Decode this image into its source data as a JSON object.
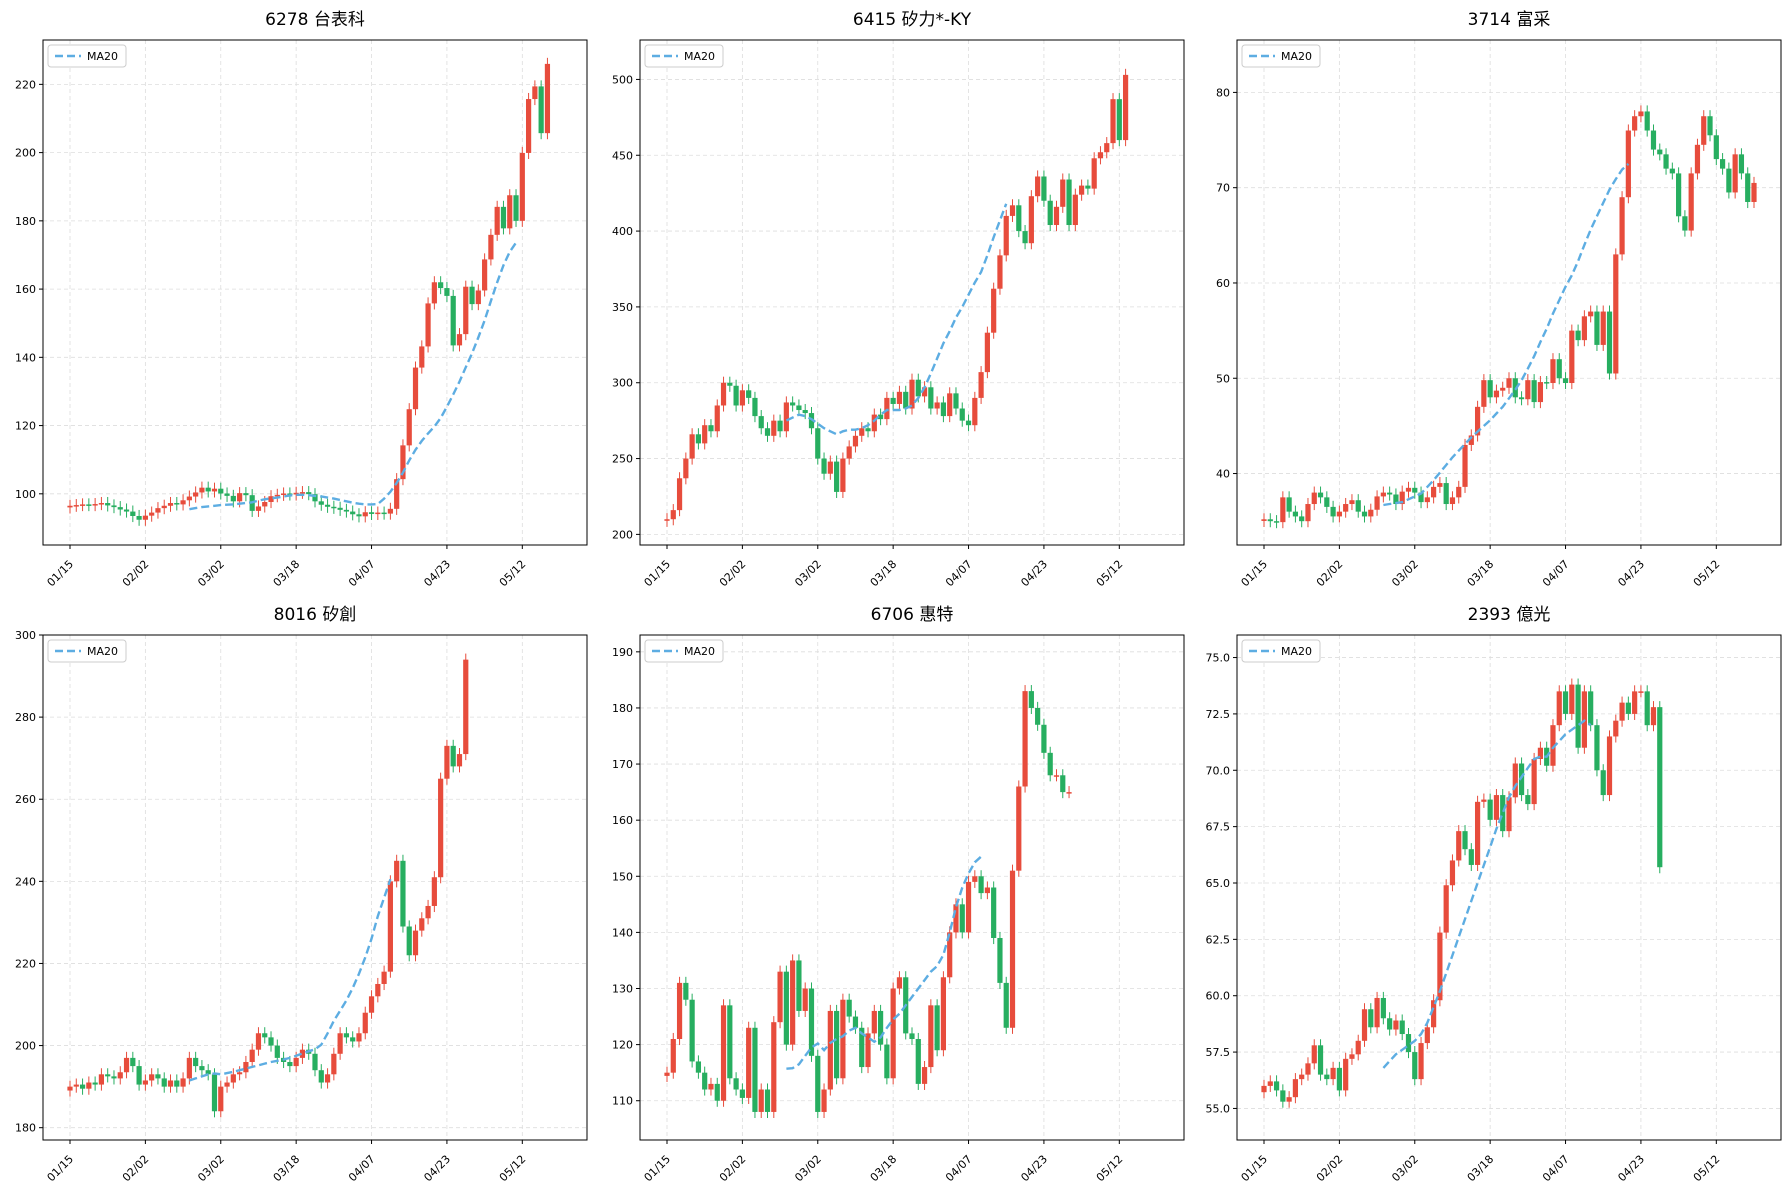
{
  "colors": {
    "up": "#e74c3c",
    "down": "#27ae60",
    "ma": "#5dade2",
    "grid": "#dddddd",
    "axis": "#000000"
  },
  "chart_data": [
    {
      "type": "candlestick",
      "title": "6278 台表科",
      "legend": {
        "label": "MA20",
        "position": "top-left"
      },
      "grid": true,
      "x_ticks": [
        "01/15",
        "02/02",
        "03/02",
        "03/18",
        "04/07",
        "04/23",
        "05/12"
      ],
      "ylim": [
        85,
        233
      ],
      "y_ticks": [
        100,
        120,
        140,
        160,
        180,
        200,
        220
      ],
      "close": [
        96.5,
        96.7,
        96.9,
        96.7,
        97.0,
        97.3,
        96.6,
        96.1,
        95.4,
        94.8,
        93.5,
        92.4,
        93.6,
        94.5,
        95.8,
        96.5,
        97.3,
        96.9,
        98.1,
        99.2,
        100.4,
        101.8,
        100.7,
        101.5,
        100.1,
        99.4,
        97.8,
        100.2,
        99.6,
        95.0,
        96.3,
        97.6,
        99.3,
        99.7,
        100.1,
        99.8,
        100.3,
        100.5,
        99.9,
        97.8,
        96.8,
        96.2,
        95.9,
        95.3,
        94.8,
        94.0,
        93.4,
        94.6,
        94.1,
        94.5,
        94.2,
        95.6,
        104.3,
        114.2,
        124.8,
        137.0,
        143.2,
        155.8,
        162.0,
        160.3,
        158.0,
        143.5,
        146.8,
        160.7,
        155.6,
        159.6,
        168.7,
        175.9,
        184.1,
        177.8,
        187.5,
        180.0,
        199.9,
        215.7,
        219.4,
        205.7,
        226.0
      ],
      "ma_start": 19,
      "ma20": [
        95.5,
        95.8,
        96.1,
        96.3,
        96.5,
        96.7,
        96.8,
        96.9,
        97.1,
        97.3,
        97.5,
        98.0,
        98.4,
        98.7,
        98.9,
        99.2,
        99.5,
        99.7,
        99.7,
        99.6,
        99.4,
        99.2,
        98.9,
        98.6,
        98.2,
        97.8,
        97.4,
        97.1,
        96.9,
        96.9,
        97.0,
        98.6,
        100.6,
        103.2,
        106.2,
        109.8,
        112.9,
        115.5,
        117.7,
        119.7,
        122.2,
        125.5,
        129.1,
        132.9,
        137.1,
        141.2,
        145.8,
        150.8,
        156.5,
        162.0,
        167.0,
        170.9,
        173.6
      ]
    },
    {
      "type": "candlestick",
      "title": "6415 矽力*-KY",
      "legend": {
        "label": "MA20",
        "position": "top-left"
      },
      "grid": true,
      "x_ticks": [
        "01/15",
        "02/02",
        "03/02",
        "03/18",
        "04/07",
        "04/23",
        "05/12"
      ],
      "ylim": [
        193,
        526
      ],
      "y_ticks": [
        200,
        250,
        300,
        350,
        400,
        450,
        500
      ],
      "close": [
        210.0,
        216.0,
        237.0,
        250.0,
        266.0,
        260.0,
        272.0,
        268.0,
        285.0,
        300.0,
        298.0,
        285.0,
        295.0,
        290.0,
        278.0,
        270.0,
        265.0,
        275.0,
        268.0,
        287.0,
        285.0,
        282.0,
        280.0,
        270.0,
        250.0,
        240.0,
        248.0,
        228.0,
        250.0,
        258.0,
        265.0,
        270.0,
        268.0,
        279.0,
        276.0,
        290.0,
        286.0,
        294.0,
        283.0,
        302.0,
        291.0,
        297.0,
        283.0,
        287.0,
        278.0,
        293.0,
        283.0,
        275.0,
        272.0,
        290.0,
        307.0,
        333.0,
        362.0,
        384.0,
        410.0,
        417.0,
        400.0,
        392.0,
        423.0,
        436.0,
        420.0,
        404.0,
        416.0,
        434.0,
        404.0,
        424.0,
        430.0,
        428.0,
        448.0,
        452.0,
        458.0,
        487.0,
        460.0,
        503.0
      ],
      "ma_start": 19,
      "ma20": [
        275.0,
        277.0,
        279.0,
        278.0,
        276.0,
        273.0,
        270.0,
        268.0,
        266.0,
        268.0,
        269.0,
        269.0,
        270.0,
        272.0,
        275.0,
        279.0,
        282.0,
        282.0,
        282.0,
        283.0,
        285.0,
        290.0,
        297.0,
        306.0,
        316.0,
        326.0,
        334.0,
        343.0,
        350.0,
        358.0,
        366.0,
        373.0,
        384.0,
        396.0,
        407.0,
        418.0
      ]
    },
    {
      "type": "candlestick",
      "title": "3714 富采",
      "legend": {
        "label": "MA20",
        "position": "top-left"
      },
      "grid": true,
      "x_ticks": [
        "01/15",
        "02/02",
        "03/02",
        "03/18",
        "04/07",
        "04/23",
        "05/12"
      ],
      "ylim": [
        32.5,
        85.5
      ],
      "y_ticks": [
        40,
        50,
        60,
        70,
        80
      ],
      "close": [
        35.2,
        35.0,
        34.9,
        37.5,
        36.0,
        35.5,
        35.0,
        36.8,
        38.0,
        37.5,
        36.5,
        35.5,
        36.0,
        36.8,
        37.2,
        36.0,
        35.5,
        36.2,
        37.6,
        38.0,
        37.8,
        36.8,
        38.1,
        38.5,
        38.0,
        37.0,
        37.5,
        38.6,
        39.0,
        36.8,
        37.5,
        38.6,
        43.0,
        44.0,
        47.0,
        49.8,
        48.0,
        48.7,
        49.0,
        50.0,
        48.0,
        47.8,
        49.8,
        47.5,
        49.6,
        49.5,
        52.0,
        50.0,
        49.5,
        55.0,
        54.0,
        56.5,
        57.0,
        53.5,
        57.0,
        50.5,
        63.0,
        69.0,
        76.0,
        77.5,
        78.0,
        76.0,
        74.0,
        73.5,
        72.0,
        71.5,
        67.0,
        65.5,
        71.5,
        74.5,
        77.5,
        75.5,
        73.0,
        72.0,
        69.5,
        73.5,
        71.5,
        68.5,
        70.5
      ],
      "ma_start": 19,
      "ma20": [
        36.7,
        36.8,
        36.9,
        37.0,
        37.3,
        37.6,
        37.9,
        38.6,
        39.3,
        40.1,
        40.9,
        41.7,
        42.4,
        43.1,
        43.8,
        44.4,
        45.0,
        45.6,
        46.3,
        47.0,
        47.9,
        48.8,
        49.8,
        51.0,
        52.3,
        53.8,
        55.2,
        56.8,
        58.2,
        59.6,
        60.8,
        62.3,
        64.0,
        65.6,
        67.0,
        68.4,
        69.8,
        70.9,
        71.9,
        72.5
      ]
    },
    {
      "type": "candlestick",
      "title": "8016 矽創",
      "legend": {
        "label": "MA20",
        "position": "top-left"
      },
      "grid": true,
      "x_ticks": [
        "01/15",
        "02/02",
        "03/02",
        "03/18",
        "04/07",
        "04/23",
        "05/12"
      ],
      "ylim": [
        177,
        300
      ],
      "y_ticks": [
        180,
        200,
        220,
        240,
        260,
        280,
        300
      ],
      "close": [
        190.0,
        190.5,
        189.5,
        191.0,
        190.5,
        193.0,
        192.5,
        192.0,
        193.5,
        197.0,
        195.0,
        190.5,
        191.5,
        193.0,
        192.0,
        190.0,
        191.5,
        190.0,
        192.0,
        197.0,
        195.0,
        194.0,
        193.0,
        184.0,
        190.0,
        191.0,
        193.0,
        193.5,
        196.0,
        199.0,
        203.0,
        202.0,
        200.0,
        197.0,
        196.0,
        195.0,
        197.0,
        199.0,
        198.0,
        194.0,
        191.0,
        193.0,
        198.0,
        203.0,
        202.0,
        201.0,
        203.0,
        208.0,
        212.0,
        215.0,
        218.0,
        240.0,
        245.0,
        229.0,
        222.0,
        228.0,
        231.0,
        234.0,
        241.0,
        265.0,
        273.0,
        268.0,
        271.0,
        294.0
      ],
      "ma_start": 19,
      "ma20": [
        191.5,
        192.0,
        192.5,
        193.0,
        193.2,
        193.0,
        193.3,
        193.6,
        194.0,
        194.4,
        194.8,
        195.2,
        195.6,
        196.0,
        196.3,
        196.6,
        197.0,
        197.5,
        198.1,
        198.6,
        199.1,
        200.2,
        203.0,
        206.0,
        208.5,
        211.0,
        214.0,
        217.5,
        221.5,
        226.0,
        231.5,
        236.0,
        240.5
      ]
    },
    {
      "type": "candlestick",
      "title": "6706 惠特",
      "legend": {
        "label": "MA20",
        "position": "top-left"
      },
      "grid": true,
      "x_ticks": [
        "01/15",
        "02/02",
        "03/02",
        "03/18",
        "04/07",
        "04/23",
        "05/12"
      ],
      "ylim": [
        103,
        193
      ],
      "y_ticks": [
        110,
        120,
        130,
        140,
        150,
        160,
        170,
        180,
        190
      ],
      "close": [
        115.0,
        121.0,
        131.0,
        128.0,
        117.0,
        115.0,
        112.0,
        113.0,
        110.0,
        127.0,
        114.0,
        112.0,
        110.5,
        123.0,
        108.0,
        112.0,
        108.0,
        124.0,
        133.0,
        120.0,
        135.0,
        126.0,
        130.0,
        118.0,
        108.0,
        112.0,
        126.0,
        114.0,
        128.0,
        125.0,
        123.0,
        116.0,
        122.0,
        126.0,
        120.0,
        114.0,
        130.0,
        132.0,
        122.0,
        121.0,
        113.0,
        116.0,
        127.0,
        119.0,
        132.0,
        140.0,
        145.0,
        140.0,
        149.0,
        150.0,
        147.0,
        148.0,
        139.0,
        131.0,
        123.0,
        151.0,
        166.0,
        183.0,
        180.0,
        177.0,
        172.0,
        168.0,
        168.0,
        165.0,
        165.0
      ],
      "ma_start": 19,
      "ma20": [
        115.7,
        115.8,
        116.5,
        118.0,
        119.5,
        120.2,
        119.0,
        120.3,
        121.0,
        121.5,
        122.5,
        123.0,
        122.0,
        121.3,
        120.5,
        121.3,
        123.0,
        124.5,
        125.5,
        127.0,
        128.5,
        130.0,
        131.5,
        133.0,
        134.0,
        136.0,
        140.0,
        144.5,
        148.0,
        150.5,
        152.5,
        153.5
      ]
    },
    {
      "type": "candlestick",
      "title": "2393 億光",
      "legend": {
        "label": "MA20",
        "position": "top-left"
      },
      "grid": true,
      "x_ticks": [
        "01/15",
        "02/02",
        "03/02",
        "03/18",
        "04/07",
        "04/23",
        "05/12"
      ],
      "ylim": [
        53.6,
        76.0
      ],
      "y_ticks": [
        55.0,
        57.5,
        60.0,
        62.5,
        65.0,
        67.5,
        70.0,
        72.5,
        75.0
      ],
      "close": [
        56.0,
        56.2,
        55.8,
        55.3,
        55.5,
        56.3,
        56.5,
        57.0,
        57.8,
        56.5,
        56.3,
        56.8,
        55.8,
        57.2,
        57.4,
        58.0,
        59.4,
        58.6,
        59.9,
        59.0,
        58.5,
        58.9,
        58.3,
        57.5,
        56.3,
        57.9,
        58.6,
        59.8,
        62.8,
        64.9,
        66.0,
        67.3,
        66.5,
        65.8,
        68.6,
        68.7,
        67.8,
        68.9,
        67.3,
        68.8,
        70.3,
        68.9,
        68.5,
        70.5,
        71.0,
        70.2,
        72.0,
        73.5,
        72.5,
        73.8,
        71.0,
        73.5,
        72.0,
        70.0,
        68.9,
        71.5,
        72.2,
        73.0,
        72.5,
        73.5,
        73.5,
        72.0,
        72.8,
        65.7
      ],
      "ma_start": 19,
      "ma20": [
        56.8,
        57.1,
        57.4,
        57.6,
        57.8,
        58.0,
        58.3,
        58.8,
        59.5,
        60.2,
        61.0,
        61.8,
        62.6,
        63.4,
        64.2,
        65.0,
        65.8,
        66.6,
        67.4,
        68.1,
        68.8,
        69.3,
        69.7,
        70.1,
        70.5,
        70.6,
        70.6,
        71.0,
        71.3,
        71.6,
        71.8,
        72.0,
        72.2,
        72.0
      ]
    }
  ]
}
